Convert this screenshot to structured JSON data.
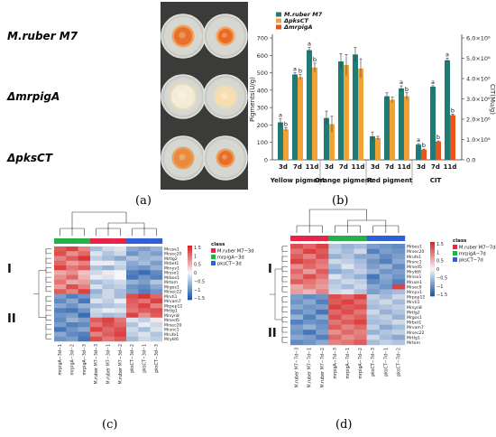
{
  "panels": {
    "a": "(a)",
    "b": "(b)",
    "c": "(c)",
    "d": "(d)"
  },
  "plates": {
    "rows": [
      {
        "label_prefix": "M.ruber",
        "label_suffix": " M7",
        "colony_color": "#e9722a",
        "ring_color": "#f0a35e",
        "colony_color_right": "#ec6b22"
      },
      {
        "label_prefix": "Δ",
        "label_suffix": "mrpigA",
        "colony_color": "#f3ecd8",
        "ring_color": "#e8dcc0",
        "colony_color_right": "#f6deb0"
      },
      {
        "label_prefix": "Δ",
        "label_suffix": "pksCT",
        "colony_color": "#ea8a3a",
        "ring_color": "#e7a060",
        "colony_color_right": "#e96f28"
      }
    ]
  },
  "chart_data": {
    "type": "bar",
    "legend": [
      "M.ruber M7",
      "ΔpksCT",
      "ΔmrpigA"
    ],
    "colors": [
      "#1f7b74",
      "#f0a234",
      "#e8541e"
    ],
    "ylabel_left": "Pigments(U/g)",
    "ylabel_right": "CIT(Mu/g)",
    "ylim_left": [
      0,
      700
    ],
    "yticks_left": [
      "0",
      "100",
      "200",
      "300",
      "400",
      "500",
      "600",
      "700"
    ],
    "ylim_right": [
      0,
      6000000
    ],
    "yticks_right": [
      "0.0",
      "1.0×10⁶",
      "2.0×10⁶",
      "3.0×10⁶",
      "4.0×10⁶",
      "5.0×10⁶",
      "6.0×10⁶"
    ],
    "groups": [
      {
        "name": "Yellow pigment",
        "categories": [
          "3d",
          "7d",
          "11d"
        ],
        "series": [
          {
            "name": "M.ruber M7",
            "values": [
              215,
              490,
              630
            ],
            "err": [
              20,
              10,
              15
            ],
            "sig": [
              "a",
              "a",
              "a"
            ]
          },
          {
            "name": "ΔpksCT",
            "values": [
              175,
              475,
              530
            ],
            "err": [
              10,
              15,
              25
            ],
            "sig": [
              "b",
              "b",
              "b"
            ]
          }
        ]
      },
      {
        "name": "Orange pigment",
        "categories": [
          "3d",
          "7d",
          "11d"
        ],
        "series": [
          {
            "name": "M.ruber M7",
            "values": [
              240,
              565,
              605
            ],
            "err": [
              40,
              45,
              40
            ],
            "sig": [
              "",
              "",
              ""
            ]
          },
          {
            "name": "ΔpksCT",
            "values": [
              205,
              545,
              525
            ],
            "err": [
              45,
              60,
              55
            ],
            "sig": [
              "",
              "",
              ""
            ]
          }
        ]
      },
      {
        "name": "Red pigment",
        "categories": [
          "3d",
          "7d",
          "11d"
        ],
        "series": [
          {
            "name": "M.ruber M7",
            "values": [
              135,
              365,
              410
            ],
            "err": [
              25,
              20,
              15
            ],
            "sig": [
              "",
              "",
              "a"
            ]
          },
          {
            "name": "ΔpksCT",
            "values": [
              125,
              345,
              365
            ],
            "err": [
              10,
              15,
              20
            ],
            "sig": [
              "",
              "",
              "b"
            ]
          }
        ]
      },
      {
        "name": "CIT",
        "categories": [
          "3d",
          "7d",
          "11d"
        ],
        "axis": "right",
        "series": [
          {
            "name": "M.ruber M7",
            "values": [
              750000,
              3600000,
              4900000
            ],
            "err": [
              50000,
              50000,
              100000
            ],
            "sig": [
              "a",
              "a",
              "a"
            ]
          },
          {
            "name": "ΔmrpigA",
            "values": [
              500000,
              900000,
              2200000
            ],
            "err": [
              30000,
              30000,
              50000
            ],
            "sig": [
              "b",
              "b",
              "b"
            ]
          }
        ]
      }
    ]
  },
  "heatmap_c": {
    "legend_title": "class",
    "legend": [
      "M.ruber M7−3d",
      "mrpigA−3d",
      "pksCT−3d"
    ],
    "legend_colors": [
      "#e8234a",
      "#27b04a",
      "#2f5fd6"
    ],
    "scale_labels": [
      "1.5",
      "1",
      "0.5",
      "0",
      "−0.5",
      "−1",
      "−1.5"
    ],
    "cluster_labels": [
      "I",
      "II"
    ],
    "rows": [
      "Mruse1",
      "Mrsec20",
      "Mrtlg2",
      "Mrbet1",
      "Mrnyv1",
      "Mrsso1",
      "Mrbos1",
      "Mrtom",
      "Mrgos1",
      "Mrsec22",
      "Mrvti1",
      "Mrvam7",
      "Mrpep12",
      "Mrtlg1",
      "Mrsyn8",
      "Mrsed5",
      "Mrsec20",
      "Mrsnc1",
      "Mrufe1",
      "Mrykt6"
    ],
    "columns": [
      "mrpigA−3d−1",
      "mrpigA−3d−2",
      "mrpigA−3d−3",
      "M.ruber M7−3d−3",
      "M.ruber M7−3d−1",
      "M.ruber M7−3d−2",
      "pksCT−3d−2",
      "pksCT−3d−1",
      "pksCT−3d−3"
    ],
    "col_classes": [
      1,
      1,
      1,
      0,
      0,
      0,
      2,
      2,
      2
    ],
    "values": [
      [
        1.2,
        1.4,
        0.9,
        -0.6,
        -0.3,
        -0.2,
        -0.8,
        -0.9,
        -0.7
      ],
      [
        1.3,
        0.8,
        1.1,
        -0.2,
        -0.5,
        -0.3,
        -1.0,
        -0.7,
        -0.9
      ],
      [
        0.9,
        1.2,
        1.5,
        -0.4,
        -0.6,
        -0.8,
        -0.5,
        -0.7,
        -0.6
      ],
      [
        1.1,
        0.7,
        0.9,
        -0.1,
        0.1,
        -0.3,
        -0.8,
        -0.6,
        -0.9
      ],
      [
        1.4,
        1.0,
        1.2,
        -0.5,
        -0.7,
        -0.4,
        -0.9,
        -1.0,
        -0.7
      ],
      [
        0.6,
        0.8,
        0.4,
        -0.3,
        0.1,
        0.0,
        -1.2,
        -1.4,
        -1.1
      ],
      [
        0.8,
        1.1,
        0.5,
        -0.1,
        -0.2,
        0.0,
        -1.3,
        -1.0,
        -1.2
      ],
      [
        1.0,
        0.6,
        0.7,
        -0.6,
        -0.4,
        -0.3,
        -0.7,
        -0.9,
        -0.5
      ],
      [
        0.7,
        1.3,
        0.9,
        -0.2,
        -0.5,
        -0.4,
        -1.0,
        -1.1,
        -0.8
      ],
      [
        1.2,
        0.9,
        1.4,
        -0.7,
        -0.3,
        -0.6,
        -0.9,
        -1.2,
        -1.0
      ],
      [
        -0.9,
        -1.2,
        -1.0,
        -0.5,
        -0.3,
        -0.6,
        1.3,
        1.5,
        1.1
      ],
      [
        -1.1,
        -0.8,
        -1.3,
        -0.2,
        -0.4,
        -0.1,
        1.2,
        1.0,
        1.4
      ],
      [
        -0.8,
        -1.0,
        -0.7,
        -0.6,
        -0.5,
        -0.4,
        1.1,
        1.4,
        0.9
      ],
      [
        -1.2,
        -1.3,
        -1.0,
        -0.3,
        -0.1,
        -0.2,
        1.0,
        1.2,
        1.3
      ],
      [
        -1.0,
        -0.9,
        -1.4,
        -0.4,
        -0.6,
        -0.5,
        1.4,
        0.8,
        1.2
      ],
      [
        -1.1,
        -0.7,
        -0.9,
        1.2,
        1.4,
        1.0,
        -0.2,
        -0.4,
        0.1
      ],
      [
        -0.9,
        -1.2,
        -1.1,
        1.0,
        1.3,
        1.1,
        -0.5,
        -0.1,
        -0.3
      ],
      [
        -1.3,
        -1.0,
        -0.8,
        1.4,
        1.1,
        1.3,
        -0.3,
        -0.6,
        -0.2
      ],
      [
        -0.8,
        -1.1,
        -1.2,
        0.9,
        1.2,
        1.4,
        -0.4,
        -0.2,
        -0.5
      ],
      [
        -1.0,
        -0.9,
        -1.3,
        1.3,
        1.0,
        1.2,
        -0.6,
        -0.3,
        -0.4
      ]
    ]
  },
  "heatmap_d": {
    "legend_title": "class",
    "legend": [
      "M.ruber M7−7d",
      "mrpigA−7d",
      "pksCT−7d"
    ],
    "legend_colors": [
      "#e8234a",
      "#27b04a",
      "#2f5fd6"
    ],
    "scale_labels": [
      "1.5",
      "1",
      "0.5",
      "0",
      "−0.5",
      "−1",
      "−1.5"
    ],
    "cluster_labels": [
      "I",
      "II"
    ],
    "rows": [
      "Mrbos1",
      "Mrsec20",
      "Mrufe1",
      "Mrsnc1",
      "Mrsed5",
      "Mrykt6",
      "Mrsso1",
      "Mruse1",
      "Mrsec9",
      "Mrnyv1",
      "Mrpep12",
      "Mrvti1",
      "Mrsyn8",
      "Mrtlg2",
      "Mrgos1",
      "Mrbet1",
      "Mrvam7",
      "Mrsec22",
      "Mrtlg1",
      "Mrtom"
    ],
    "columns": [
      "M.ruber M7−7d−3",
      "M.ruber M7−7d−1",
      "M.ruber M7−7d−2",
      "mrpigA−7d−3",
      "mrpigA−7d−1",
      "mrpigA−7d−2",
      "pksCT−7d−3",
      "pksCT−7d−1",
      "pksCT−7d−2"
    ],
    "col_classes": [
      0,
      0,
      0,
      1,
      1,
      1,
      2,
      2,
      2
    ],
    "values": [
      [
        1.3,
        1.1,
        1.4,
        -0.5,
        -0.7,
        -0.6,
        -0.9,
        -1.0,
        -1.1
      ],
      [
        1.0,
        1.4,
        1.2,
        -0.4,
        -0.6,
        -0.3,
        -1.2,
        -0.9,
        -1.0
      ],
      [
        1.2,
        0.9,
        1.3,
        -0.7,
        -0.5,
        -0.8,
        -0.8,
        -1.1,
        -0.9
      ],
      [
        1.4,
        1.2,
        1.0,
        -0.3,
        -0.4,
        -0.6,
        -1.0,
        -1.2,
        -0.8
      ],
      [
        0.8,
        1.1,
        0.9,
        -0.6,
        -0.2,
        -0.5,
        -0.9,
        -0.7,
        -1.1
      ],
      [
        1.1,
        0.7,
        1.2,
        -0.8,
        -0.6,
        -0.4,
        -0.7,
        -1.0,
        -0.9
      ],
      [
        0.9,
        1.3,
        1.0,
        -0.2,
        -0.5,
        -0.7,
        -1.3,
        -0.8,
        -1.0
      ],
      [
        1.2,
        1.0,
        0.8,
        -0.5,
        -0.3,
        -0.4,
        -1.1,
        -0.9,
        -1.2
      ],
      [
        0.6,
        0.9,
        0.7,
        -0.4,
        -0.6,
        -0.3,
        -0.8,
        -1.0,
        1.4
      ],
      [
        0.7,
        0.5,
        0.9,
        -0.3,
        -0.2,
        -0.5,
        -0.9,
        -0.7,
        -0.6
      ],
      [
        -0.9,
        -1.1,
        -1.0,
        1.3,
        1.1,
        1.4,
        -0.4,
        -0.6,
        -0.3
      ],
      [
        -1.0,
        -0.8,
        -1.2,
        1.2,
        1.4,
        1.1,
        -0.5,
        -0.3,
        -0.6
      ],
      [
        -0.8,
        -1.0,
        -0.9,
        1.4,
        1.2,
        1.3,
        -0.6,
        -0.5,
        -0.4
      ],
      [
        -1.1,
        -0.9,
        -1.3,
        1.1,
        1.3,
        1.0,
        -0.3,
        -0.7,
        -0.5
      ],
      [
        -0.7,
        -1.2,
        -0.8,
        1.3,
        1.0,
        1.2,
        -0.5,
        -0.4,
        -0.7
      ],
      [
        -1.2,
        -1.0,
        -1.1,
        1.0,
        1.2,
        1.4,
        -0.6,
        -0.5,
        -0.3
      ],
      [
        -0.9,
        -0.7,
        -1.0,
        1.2,
        0.9,
        1.1,
        -0.4,
        -0.8,
        -0.6
      ],
      [
        -1.0,
        -1.3,
        -0.9,
        0.8,
        1.1,
        0.9,
        -0.7,
        -0.5,
        -0.4
      ],
      [
        -0.8,
        -0.9,
        -1.2,
        1.1,
        0.8,
        1.0,
        -0.3,
        -0.6,
        -0.8
      ],
      [
        -1.1,
        -1.0,
        -0.8,
        0.9,
        1.0,
        1.2,
        -0.6,
        -0.4,
        -0.5
      ]
    ]
  }
}
